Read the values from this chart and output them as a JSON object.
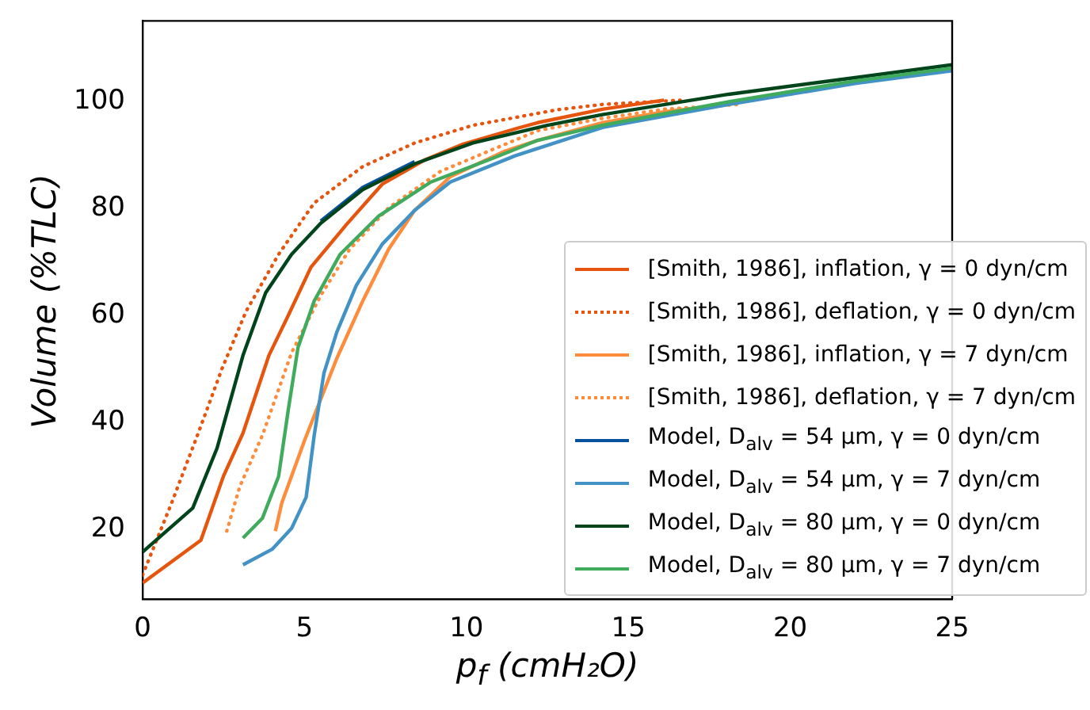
{
  "chart_data": {
    "type": "line",
    "xlabel": "p$_{f}$ (cmH₂O)",
    "ylabel": "Volume (%TLC)",
    "xlim": [
      0,
      25
    ],
    "ylim": [
      7,
      115
    ],
    "xticks": [
      0,
      5,
      10,
      15,
      20,
      25
    ],
    "yticks": [
      20,
      40,
      60,
      80,
      100
    ],
    "grid": false,
    "legend": "bottom right",
    "marker": "none",
    "series": [
      {
        "name": "[Smith, 1986], inflation, γ = 0 dyn/cm",
        "color": "#e6550d",
        "line_style": "solid",
        "x": [
          0,
          1.8,
          2.5,
          3.1,
          3.9,
          4.5,
          5.2,
          6.3,
          7.4,
          8.7,
          9.9,
          11.6,
          12.2,
          14.2,
          16.1
        ],
        "values": [
          10,
          18,
          30,
          38,
          52.5,
          60,
          69,
          77,
          84.5,
          89,
          92,
          95,
          96,
          98.5,
          100.2
        ]
      },
      {
        "name": "[Smith, 1986], deflation, γ = 0 dyn/cm",
        "color": "#e6550d",
        "line_style": "dotted",
        "x": [
          0,
          0.9,
          1.7,
          2.45,
          3.2,
          4.2,
          5.3,
          6.8,
          8.4,
          10.2,
          12.8,
          14.2,
          16.6
        ],
        "values": [
          11.5,
          25,
          37.7,
          50,
          60.8,
          71.4,
          81,
          87.8,
          92.2,
          95.5,
          98.4,
          99.4,
          100.2
        ]
      },
      {
        "name": "[Smith, 1986], inflation, γ = 7 dyn/cm",
        "color": "#fd8d3c",
        "line_style": "solid",
        "x": [
          4.1,
          4.3,
          5,
          5.5,
          6,
          6.8,
          7.6,
          8.4,
          9.5,
          11.2,
          12.2,
          14.2,
          16.1,
          18.1
        ],
        "values": [
          19.7,
          25,
          36.6,
          44.3,
          52,
          62.7,
          72.4,
          79.6,
          85.9,
          90.7,
          92.7,
          96,
          98,
          99.4
        ]
      },
      {
        "name": "[Smith, 1986], deflation, γ = 7 dyn/cm",
        "color": "#fd8d3c",
        "line_style": "dotted",
        "x": [
          2.6,
          3,
          3.7,
          4.6,
          5.5,
          6.4,
          7.6,
          9.2,
          12.2,
          14.2,
          16.1,
          18.4
        ],
        "values": [
          19.7,
          28,
          37.6,
          53,
          63.7,
          72.4,
          80.1,
          86.9,
          94.5,
          96.8,
          98.5,
          99.4
        ]
      },
      {
        "name": "Model, D$_{alv}$ = 54 μm, γ = 0 dyn/cm",
        "color": "#08519c",
        "line_style": "solid",
        "x": [
          5.5,
          6.8,
          8.4
        ],
        "values": [
          77.6,
          83.9,
          88.7
        ]
      },
      {
        "name": "Model, D$_{alv}$ = 54 μm, γ = 7 dyn/cm",
        "color": "#4292c6",
        "line_style": "solid",
        "x": [
          3.1,
          4,
          4.6,
          5.05,
          5.3,
          5.6,
          6,
          6.6,
          7.4,
          8.4,
          9.5,
          11.5,
          14.2,
          18.1,
          22,
          25
        ],
        "values": [
          13.4,
          16.3,
          20.2,
          26,
          37.6,
          49.2,
          56.9,
          65.6,
          73.3,
          79.6,
          84.9,
          89.8,
          95.1,
          99.4,
          103.3,
          105.7
        ]
      },
      {
        "name": "Model, D$_{alv}$ = 80 μm, γ = 0 dyn/cm",
        "color": "#00441b",
        "line_style": "solid",
        "x": [
          0,
          1.55,
          2.3,
          3.1,
          3.8,
          4.6,
          5.5,
          6.8,
          8.4,
          10.2,
          12.5,
          14.2,
          18.1,
          22,
          25
        ],
        "values": [
          15.8,
          24,
          35.2,
          52.5,
          64.2,
          71.4,
          77.2,
          83.5,
          88.3,
          92.2,
          95.5,
          97.5,
          101.3,
          104.4,
          106.8
        ]
      },
      {
        "name": "Model, D$_{alv}$ = 80 μm, γ = 7 dyn/cm",
        "color": "#41ab5d",
        "line_style": "solid",
        "x": [
          3.1,
          3.7,
          4.2,
          4.5,
          4.8,
          5.3,
          6.1,
          7.3,
          8.9,
          10.8,
          12.2,
          14.2,
          18.1,
          22,
          25
        ],
        "values": [
          18.4,
          22.1,
          29.9,
          42.4,
          54,
          62.7,
          71.4,
          78.6,
          84.9,
          89.3,
          92.7,
          95.5,
          99.9,
          103.8,
          106.2
        ]
      }
    ]
  }
}
